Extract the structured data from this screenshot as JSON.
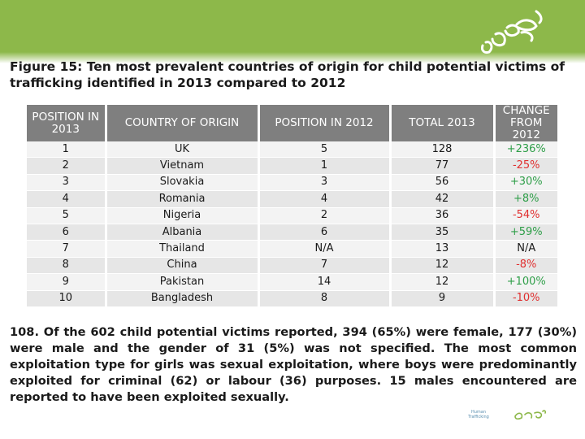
{
  "figure": {
    "title": "Figure 15: Ten most prevalent countries of origin for child potential victims of trafficking identified in 2013 compared to 2012"
  },
  "table": {
    "headers": [
      "POSITION IN 2013",
      "COUNTRY OF ORIGIN",
      "POSITION IN 2012",
      "TOTAL 2013",
      "CHANGE FROM 2012"
    ],
    "rows": [
      {
        "pos2013": "1",
        "country": "UK",
        "pos2012": "5",
        "total": "128",
        "change": "+236%",
        "dir": "pos"
      },
      {
        "pos2013": "2",
        "country": "Vietnam",
        "pos2012": "1",
        "total": "77",
        "change": "-25%",
        "dir": "neg"
      },
      {
        "pos2013": "3",
        "country": "Slovakia",
        "pos2012": "3",
        "total": "56",
        "change": "+30%",
        "dir": "pos"
      },
      {
        "pos2013": "4",
        "country": "Romania",
        "pos2012": "4",
        "total": "42",
        "change": "+8%",
        "dir": "pos"
      },
      {
        "pos2013": "5",
        "country": "Nigeria",
        "pos2012": "2",
        "total": "36",
        "change": "-54%",
        "dir": "neg"
      },
      {
        "pos2013": "6",
        "country": "Albania",
        "pos2012": "6",
        "total": "35",
        "change": "+59%",
        "dir": "pos"
      },
      {
        "pos2013": "7",
        "country": "Thailand",
        "pos2012": "N/A",
        "total": "13",
        "change": "N/A",
        "dir": "na"
      },
      {
        "pos2013": "8",
        "country": "China",
        "pos2012": "7",
        "total": "12",
        "change": "-8%",
        "dir": "neg"
      },
      {
        "pos2013": "9",
        "country": "Pakistan",
        "pos2012": "14",
        "total": "12",
        "change": "+100%",
        "dir": "pos"
      },
      {
        "pos2013": "10",
        "country": "Bangladesh",
        "pos2012": "8",
        "total": "9",
        "change": "-10%",
        "dir": "neg"
      }
    ]
  },
  "paragraph": {
    "text": "108. Of the 602 child potential victims reported, 394 (65%) were female, 177 (30%) were male and the gender of 31 (5%) was not specified. The most common exploitation type for girls was sexual exploitation, where boys were predominantly exploited for criminal (62) or labour (36) purposes. 15 males encountered are reported to have been exploited sexually."
  },
  "footer": {
    "logo_text": "Human Trafficking"
  },
  "colors": {
    "banner": "#8db84a",
    "header_bg": "#7f7f7f",
    "positive": "#2e9e48",
    "negative": "#e03030"
  }
}
